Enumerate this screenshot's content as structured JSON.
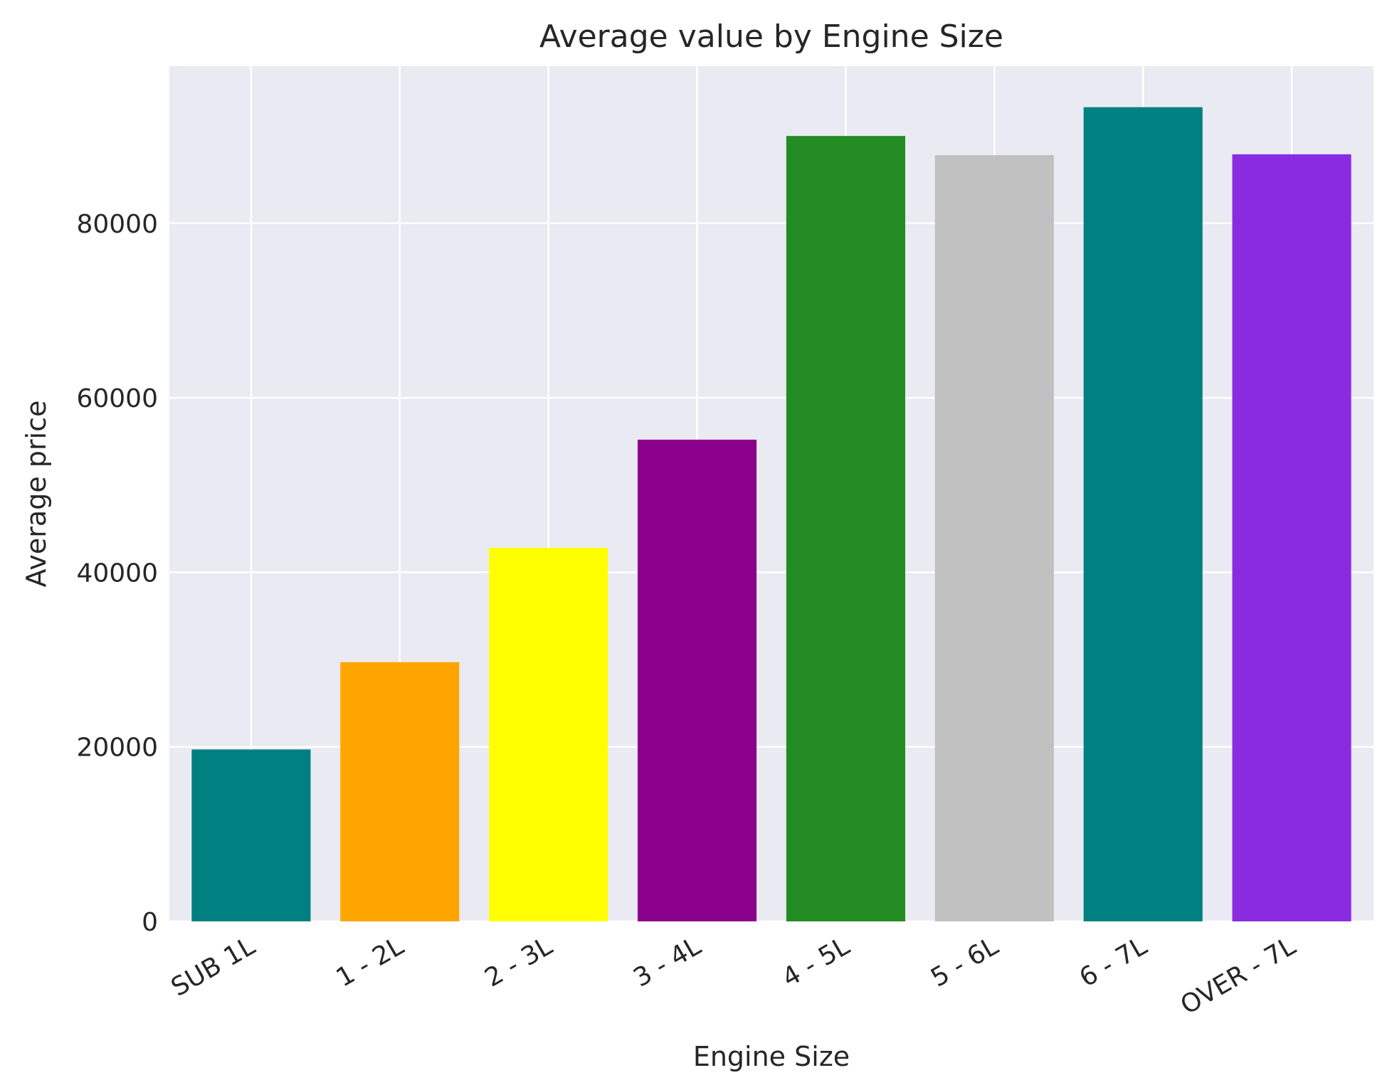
{
  "chart_data": {
    "type": "bar",
    "title": "Average value by Engine Size",
    "xlabel": "Engine Size",
    "ylabel": "Average price",
    "categories": [
      "SUB 1L",
      "1 - 2L",
      "2 - 3L",
      "3 - 4L",
      "4 - 5L",
      "5 - 6L",
      "6 - 7L",
      "OVER - 7L"
    ],
    "values": [
      19700,
      29700,
      42800,
      55200,
      90000,
      87800,
      93300,
      87900
    ],
    "colors": [
      "#008080",
      "#FFA500",
      "#FFFF00",
      "#8B008B",
      "#228B22",
      "#C0C0C0",
      "#008080",
      "#8A2BE2"
    ],
    "ylim": [
      0,
      98000
    ],
    "yticks": [
      0,
      20000,
      40000,
      60000,
      80000
    ],
    "ytick_labels": [
      "0",
      "20000",
      "40000",
      "60000",
      "80000"
    ],
    "grid": true,
    "background": "#EAEAF2"
  }
}
